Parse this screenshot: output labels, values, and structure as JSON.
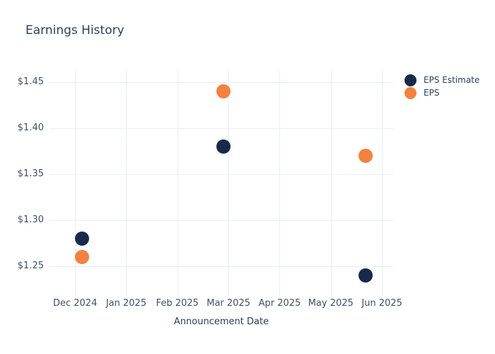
{
  "page": {
    "background": "#ffffff"
  },
  "chart_data": {
    "type": "scatter",
    "title": "Earnings History",
    "xlabel": "Announcement Date",
    "ylabel": "",
    "grid": true,
    "legend_position": "outside-top-right",
    "x_unit": "months since Dec 2024 tick",
    "x_tick_labels": [
      "Dec 2024",
      "Jan 2025",
      "Feb 2025",
      "Mar 2025",
      "Apr 2025",
      "May 2025",
      "Jun 2025"
    ],
    "y_ticks": [
      1.45,
      1.4,
      1.35,
      1.3,
      1.25
    ],
    "y_tick_labels": [
      "$1.45",
      "$1.40",
      "$1.35",
      "$1.30",
      "$1.25"
    ],
    "xlim": [
      -0.5,
      6.22
    ],
    "ylim": [
      1.218,
      1.462
    ],
    "series": [
      {
        "name": "EPS Estimate",
        "color": "#152a4c",
        "marker_size": 20,
        "points": [
          {
            "x": 0.14,
            "y": 1.28
          },
          {
            "x": 2.9,
            "y": 1.38
          },
          {
            "x": 5.68,
            "y": 1.24
          }
        ]
      },
      {
        "name": "EPS",
        "color": "#f4813d",
        "marker_size": 20,
        "points": [
          {
            "x": 0.14,
            "y": 1.26
          },
          {
            "x": 2.9,
            "y": 1.44
          },
          {
            "x": 5.68,
            "y": 1.37
          }
        ]
      }
    ],
    "colors": {
      "title_text": "#2a3f5f",
      "tick_text": "#3f4f6b",
      "gridline": "#e8eef7",
      "eps_estimate": "#152a4c",
      "eps": "#f4813d"
    }
  }
}
